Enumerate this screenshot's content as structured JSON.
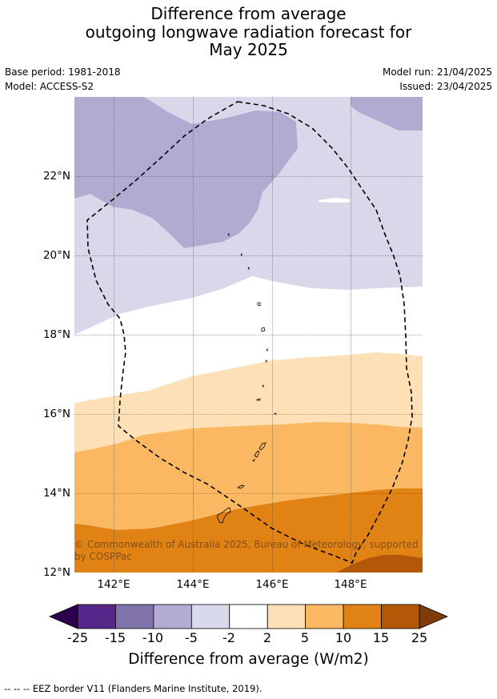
{
  "title": {
    "line1": "Difference from average",
    "line2": "outgoing longwave radiation forecast for",
    "line3": "May 2025"
  },
  "meta": {
    "base_period": "Base period: 1981-2018",
    "model": "Model: ACCESS-S2",
    "model_run": "Model run: 21/04/2025",
    "issued": "Issued: 23/04/2025"
  },
  "map": {
    "lat_ticks": [
      "22°N",
      "20°N",
      "18°N",
      "16°N",
      "14°N",
      "12°N"
    ],
    "lon_ticks": [
      "142°E",
      "144°E",
      "146°E",
      "148°E"
    ],
    "copyright": "© Commonwealth of Australia 2025, Bureau of Meteorology, supported by COSPPac",
    "colors": {
      "m10": "#b1aad1",
      "m5": "#d8d8ea",
      "neutral": "#ffffff",
      "p2": "#fde0b6",
      "p5": "#f9b861",
      "p10": "#e08214",
      "p15": "#b35709"
    }
  },
  "colorbar": {
    "ticks": [
      "-25",
      "-15",
      "-10",
      "-5",
      "-2",
      "2",
      "5",
      "10",
      "15",
      "25"
    ],
    "colors": [
      "#542788",
      "#8073ac",
      "#b2abd2",
      "#d8daeb",
      "#ffffff",
      "#fee0b6",
      "#fdb863",
      "#e08214",
      "#b35806"
    ],
    "ext_low": "#2d004b",
    "ext_high": "#7f3b08",
    "label": "Difference from average (W/m2)"
  },
  "footnote": "--  --  -- EEZ border V11 (Flanders Marine Institute, 2019)."
}
